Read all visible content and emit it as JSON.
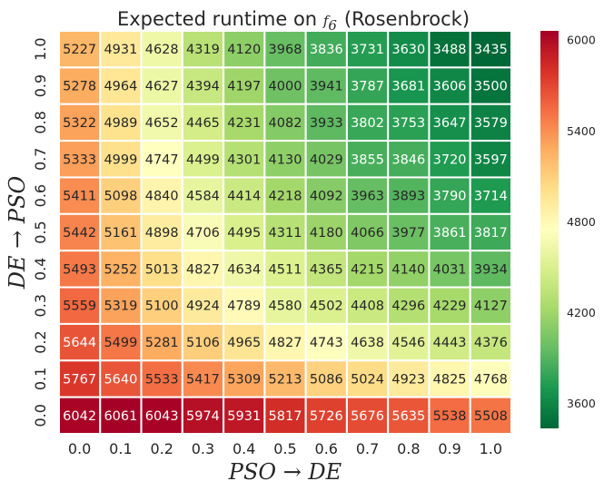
{
  "chart_data": {
    "type": "heatmap",
    "title": "Expected runtime on",
    "title_math": {
      "base": "f",
      "subscript": "6"
    },
    "title_suffix": "(Rosenbrock)",
    "xlabel": "PSO → DE",
    "ylabel": "DE → PSO",
    "x_categories": [
      "0.0",
      "0.1",
      "0.2",
      "0.3",
      "0.4",
      "0.5",
      "0.6",
      "0.7",
      "0.8",
      "0.9",
      "1.0"
    ],
    "y_categories": [
      "1.0",
      "0.9",
      "0.8",
      "0.7",
      "0.6",
      "0.5",
      "0.4",
      "0.3",
      "0.2",
      "0.1",
      "0.0"
    ],
    "values": [
      [
        "5227",
        "4931",
        "4628",
        "4319",
        "4120",
        "3968",
        "3836",
        "3731",
        "3630",
        "3488",
        "3435"
      ],
      [
        "5278",
        "4964",
        "4627",
        "4394",
        "4197",
        "4000",
        "3941",
        "3787",
        "3681",
        "3606",
        "3500"
      ],
      [
        "5322",
        "4989",
        "4652",
        "4465",
        "4231",
        "4082",
        "3933",
        "3802",
        "3753",
        "3647",
        "3579"
      ],
      [
        "5333",
        "4999",
        "4747",
        "4499",
        "4301",
        "4130",
        "4029",
        "3855",
        "3846",
        "3720",
        "3597"
      ],
      [
        "5411",
        "5098",
        "4840",
        "4584",
        "4414",
        "4218",
        "4092",
        "3963",
        "3893",
        "3790",
        "3714"
      ],
      [
        "5442",
        "5161",
        "4898",
        "4706",
        "4495",
        "4311",
        "4180",
        "4066",
        "3977",
        "3861",
        "3817"
      ],
      [
        "5493",
        "5252",
        "5013",
        "4827",
        "4634",
        "4511",
        "4365",
        "4215",
        "4140",
        "4031",
        "3934"
      ],
      [
        "5559",
        "5319",
        "5100",
        "4924",
        "4789",
        "4580",
        "4502",
        "4408",
        "4296",
        "4229",
        "4127"
      ],
      [
        "5644",
        "5499",
        "5281",
        "5106",
        "4965",
        "4827",
        "4743",
        "4638",
        "4546",
        "4443",
        "4376"
      ],
      [
        "5767",
        "5640",
        "5533",
        "5417",
        "5309",
        "5213",
        "5086",
        "5024",
        "4923",
        "4825",
        "4768"
      ],
      [
        "6042",
        "6061",
        "6043",
        "5974",
        "5931",
        "5817",
        "5726",
        "5676",
        "5635",
        "5538",
        "5508"
      ]
    ],
    "colorbar": {
      "vmin": 3435,
      "vmax": 6061,
      "ticks": [
        "3600",
        "4200",
        "4800",
        "5400",
        "6000"
      ],
      "colormap": "RdYlGn_r",
      "colors": [
        "#006837",
        "#1a9850",
        "#66bd63",
        "#a6d96a",
        "#d9ef8b",
        "#ffffbf",
        "#fee08b",
        "#fdae61",
        "#f46d43",
        "#d73027",
        "#a50026"
      ]
    },
    "grid": false
  }
}
